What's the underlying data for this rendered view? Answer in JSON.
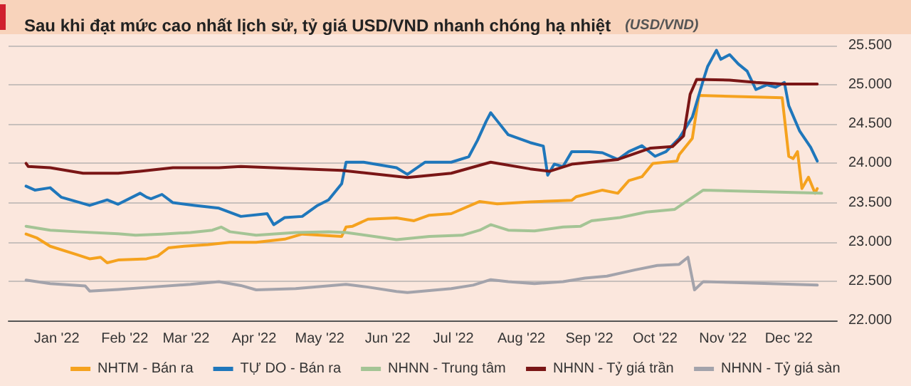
{
  "chart_data": {
    "type": "line",
    "title": "Sau khi đạt mức cao nhất lịch sử, tỷ giá USD/VND nhanh chóng hạ nhiệt",
    "subtitle": "(USD/VND)",
    "xlim": [
      "2021-12-24",
      "2023-01-06"
    ],
    "xticks": [
      {
        "value": "2022-01-15",
        "label": "Jan '22"
      },
      {
        "value": "2022-02-15",
        "label": "Feb '22"
      },
      {
        "value": "2022-03-15",
        "label": "Mar '22"
      },
      {
        "value": "2022-04-15",
        "label": "Apr '22"
      },
      {
        "value": "2022-05-15",
        "label": "May '22"
      },
      {
        "value": "2022-06-15",
        "label": "Jun '22"
      },
      {
        "value": "2022-07-15",
        "label": "Jul '22"
      },
      {
        "value": "2022-08-15",
        "label": "Aug '22"
      },
      {
        "value": "2022-09-15",
        "label": "Sep '22"
      },
      {
        "value": "2022-10-15",
        "label": "Oct '22"
      },
      {
        "value": "2022-11-15",
        "label": "Nov '22"
      },
      {
        "value": "2022-12-15",
        "label": "Dec '22"
      }
    ],
    "ylim": [
      22000,
      25500
    ],
    "yticks": [
      {
        "value": 22000,
        "label": "22.000"
      },
      {
        "value": 22500,
        "label": "22.500"
      },
      {
        "value": 23000,
        "label": "23.000"
      },
      {
        "value": 23500,
        "label": "23.500"
      },
      {
        "value": 24000,
        "label": "24.000"
      },
      {
        "value": 24500,
        "label": "24.500"
      },
      {
        "value": 25000,
        "label": "25.000"
      },
      {
        "value": 25500,
        "label": "25.500"
      }
    ],
    "grid": "y",
    "legend": "bottom",
    "marker": "none",
    "line_style": "solid",
    "series": [
      {
        "name": "NHTM - Bán ra",
        "color": "#f5a21e",
        "x": [
          "2022-01-01",
          "2022-01-06",
          "2022-01-12",
          "2022-01-24",
          "2022-01-30",
          "2022-02-04",
          "2022-02-07",
          "2022-02-12",
          "2022-02-25",
          "2022-03-02",
          "2022-03-07",
          "2022-03-14",
          "2022-03-25",
          "2022-04-04",
          "2022-04-16",
          "2022-04-29",
          "2022-05-07",
          "2022-05-25",
          "2022-05-27",
          "2022-05-30",
          "2022-06-06",
          "2022-06-19",
          "2022-06-27",
          "2022-07-04",
          "2022-07-14",
          "2022-07-27",
          "2022-08-04",
          "2022-08-19",
          "2022-09-07",
          "2022-09-09",
          "2022-09-21",
          "2022-09-28",
          "2022-10-03",
          "2022-10-09",
          "2022-10-14",
          "2022-10-25",
          "2022-10-26",
          "2022-11-01",
          "2022-11-04",
          "2022-12-12",
          "2022-12-15",
          "2022-12-17",
          "2022-12-19",
          "2022-12-21",
          "2022-12-24",
          "2022-12-27",
          "2022-12-28"
        ],
        "values": [
          23100,
          23050,
          22945,
          22840,
          22785,
          22805,
          22735,
          22770,
          22785,
          22820,
          22925,
          22945,
          22965,
          22995,
          22995,
          23035,
          23100,
          23070,
          23190,
          23200,
          23290,
          23305,
          23270,
          23340,
          23360,
          23515,
          23485,
          23510,
          23530,
          23575,
          23660,
          23620,
          23780,
          23830,
          24000,
          24030,
          24110,
          24320,
          24865,
          24835,
          24090,
          24060,
          24150,
          23680,
          23825,
          23620,
          23680
        ]
      },
      {
        "name": "TỰ DO - Bán ra",
        "color": "#1f77bb",
        "x": [
          "2022-01-01",
          "2022-01-05",
          "2022-01-12",
          "2022-01-17",
          "2022-01-30",
          "2022-02-07",
          "2022-02-12",
          "2022-02-22",
          "2022-02-25",
          "2022-02-27",
          "2022-03-04",
          "2022-03-09",
          "2022-03-19",
          "2022-03-30",
          "2022-04-09",
          "2022-04-21",
          "2022-04-24",
          "2022-04-29",
          "2022-05-07",
          "2022-05-14",
          "2022-05-19",
          "2022-05-25",
          "2022-05-27",
          "2022-06-04",
          "2022-06-19",
          "2022-06-24",
          "2022-07-02",
          "2022-07-14",
          "2022-07-22",
          "2022-07-26",
          "2022-07-30",
          "2022-08-01",
          "2022-08-04",
          "2022-08-09",
          "2022-08-19",
          "2022-08-25",
          "2022-08-27",
          "2022-08-30",
          "2022-09-03",
          "2022-09-07",
          "2022-09-15",
          "2022-09-21",
          "2022-09-28",
          "2022-10-03",
          "2022-10-09",
          "2022-10-15",
          "2022-10-20",
          "2022-10-26",
          "2022-11-01",
          "2022-11-06",
          "2022-11-08",
          "2022-11-12",
          "2022-11-14",
          "2022-11-18",
          "2022-11-22",
          "2022-11-26",
          "2022-11-30",
          "2022-12-05",
          "2022-12-09",
          "2022-12-13",
          "2022-12-15",
          "2022-12-20",
          "2022-12-25",
          "2022-12-28"
        ],
        "values": [
          23710,
          23660,
          23690,
          23570,
          23465,
          23535,
          23480,
          23620,
          23570,
          23550,
          23605,
          23500,
          23465,
          23430,
          23325,
          23360,
          23220,
          23310,
          23325,
          23465,
          23535,
          23740,
          24015,
          24015,
          23945,
          23860,
          24015,
          24015,
          24085,
          24295,
          24540,
          24645,
          24540,
          24365,
          24265,
          24220,
          23850,
          23990,
          23960,
          24150,
          24150,
          24135,
          24050,
          24150,
          24225,
          24090,
          24150,
          24320,
          24590,
          25060,
          25235,
          25440,
          25325,
          25385,
          25265,
          25175,
          24940,
          25000,
          24970,
          25030,
          24735,
          24410,
          24205,
          24030
        ]
      },
      {
        "name": "NHNN - Trung tâm",
        "color": "#a4c495",
        "x": [
          "2022-01-01",
          "2022-01-12",
          "2022-01-24",
          "2022-02-12",
          "2022-02-20",
          "2022-03-04",
          "2022-03-17",
          "2022-03-27",
          "2022-03-31",
          "2022-04-04",
          "2022-04-16",
          "2022-05-04",
          "2022-05-19",
          "2022-05-27",
          "2022-06-14",
          "2022-06-19",
          "2022-07-04",
          "2022-07-19",
          "2022-07-27",
          "2022-08-01",
          "2022-08-09",
          "2022-08-21",
          "2022-09-03",
          "2022-09-11",
          "2022-09-16",
          "2022-09-29",
          "2022-10-11",
          "2022-10-24",
          "2022-11-06",
          "2022-12-30"
        ],
        "values": [
          23200,
          23150,
          23130,
          23105,
          23085,
          23100,
          23120,
          23150,
          23190,
          23130,
          23085,
          23120,
          23130,
          23120,
          23050,
          23030,
          23070,
          23085,
          23150,
          23220,
          23150,
          23140,
          23190,
          23200,
          23270,
          23310,
          23380,
          23415,
          23660,
          23620
        ]
      },
      {
        "name": "NHNN - Tỷ giá trần",
        "color": "#7a1616",
        "x": [
          "2022-01-01",
          "2022-01-02",
          "2022-01-12",
          "2022-01-27",
          "2022-02-12",
          "2022-02-22",
          "2022-03-09",
          "2022-03-30",
          "2022-04-09",
          "2022-05-25",
          "2022-06-24",
          "2022-07-14",
          "2022-08-01",
          "2022-08-19",
          "2022-08-28",
          "2022-09-07",
          "2022-09-28",
          "2022-10-13",
          "2022-10-23",
          "2022-10-28",
          "2022-10-31",
          "2022-11-03",
          "2022-11-18",
          "2022-11-30",
          "2022-12-12",
          "2022-12-28"
        ],
        "values": [
          24000,
          23960,
          23945,
          23875,
          23875,
          23900,
          23945,
          23945,
          23960,
          23910,
          23820,
          23875,
          24015,
          23930,
          23900,
          23990,
          24050,
          24195,
          24215,
          24350,
          24880,
          25070,
          25060,
          25030,
          25010,
          25010
        ]
      },
      {
        "name": "NHNN - Tỷ giá sàn",
        "color": "#a3a3ab",
        "x": [
          "2022-01-01",
          "2022-01-12",
          "2022-01-28",
          "2022-01-30",
          "2022-02-12",
          "2022-02-27",
          "2022-03-17",
          "2022-03-30",
          "2022-04-09",
          "2022-04-16",
          "2022-05-04",
          "2022-05-27",
          "2022-06-06",
          "2022-06-19",
          "2022-06-24",
          "2022-07-14",
          "2022-07-24",
          "2022-08-01",
          "2022-08-09",
          "2022-08-21",
          "2022-09-03",
          "2022-09-13",
          "2022-09-23",
          "2022-10-06",
          "2022-10-16",
          "2022-10-26",
          "2022-10-30",
          "2022-11-02",
          "2022-11-06",
          "2022-12-28"
        ],
        "values": [
          22515,
          22470,
          22440,
          22375,
          22395,
          22425,
          22460,
          22495,
          22445,
          22390,
          22405,
          22460,
          22425,
          22370,
          22355,
          22405,
          22450,
          22520,
          22495,
          22470,
          22495,
          22540,
          22565,
          22645,
          22700,
          22715,
          22805,
          22390,
          22495,
          22450
        ]
      }
    ]
  }
}
